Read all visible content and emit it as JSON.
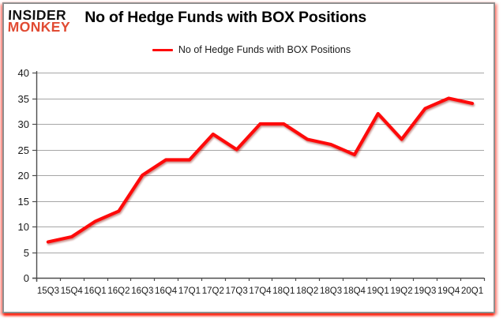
{
  "page": {
    "logo": {
      "line1": "INSIDER",
      "line2": "MONKEY"
    },
    "title": "No of Hedge Funds with BOX Positions",
    "legend_label": "No of Hedge Funds with BOX Positions"
  },
  "colors": {
    "line": "#fe0a0a",
    "logo_accent": "#e14b33",
    "logo_dark": "#111111",
    "grid": "#a6a6a6",
    "axis": "#4d4d4d",
    "tick_text": "#1a1a1a",
    "border": "#8f8f8f",
    "glow": "#ff1905"
  },
  "chart_data": {
    "type": "line",
    "title": "No of Hedge Funds with BOX Positions",
    "xlabel": "",
    "ylabel": "",
    "categories": [
      "15Q3",
      "15Q4",
      "16Q1",
      "16Q2",
      "16Q3",
      "16Q4",
      "17Q1",
      "17Q2",
      "17Q3",
      "17Q4",
      "18Q1",
      "18Q2",
      "18Q3",
      "18Q4",
      "19Q1",
      "19Q2",
      "19Q3",
      "19Q4",
      "20Q1"
    ],
    "series": [
      {
        "name": "No of Hedge Funds with BOX Positions",
        "values": [
          7,
          8,
          11,
          13,
          20,
          23,
          23,
          28,
          25,
          30,
          30,
          27,
          26,
          24,
          32,
          27,
          33,
          35,
          34
        ]
      }
    ],
    "ylim": [
      0,
      40
    ],
    "yticks": [
      0,
      5,
      10,
      15,
      20,
      25,
      30,
      35,
      40
    ],
    "grid": true,
    "legend_position": "top"
  }
}
